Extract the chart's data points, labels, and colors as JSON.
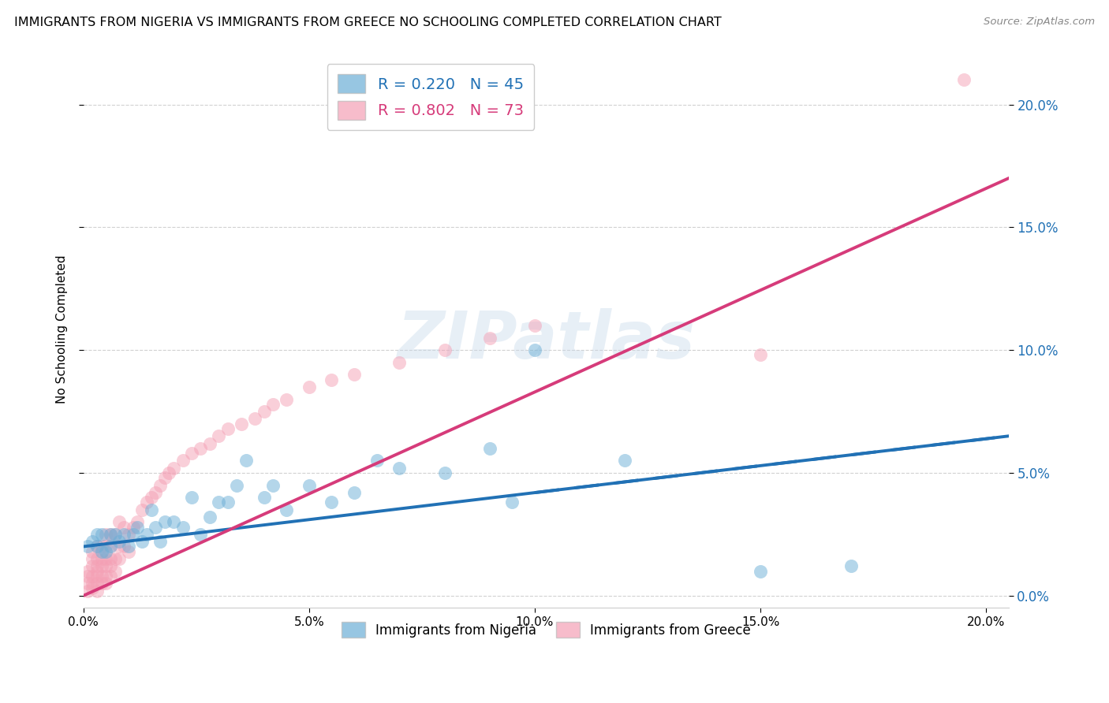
{
  "title": "IMMIGRANTS FROM NIGERIA VS IMMIGRANTS FROM GREECE NO SCHOOLING COMPLETED CORRELATION CHART",
  "source": "Source: ZipAtlas.com",
  "ylabel": "No Schooling Completed",
  "xlabel_nigeria": "Immigrants from Nigeria",
  "xlabel_greece": "Immigrants from Greece",
  "xlim": [
    0.0,
    0.205
  ],
  "ylim": [
    -0.005,
    0.222
  ],
  "nigeria_R": 0.22,
  "nigeria_N": 45,
  "greece_R": 0.802,
  "greece_N": 73,
  "nigeria_color": "#6baed6",
  "greece_color": "#f4a0b5",
  "nigeria_line_color": "#2171b5",
  "greece_line_color": "#d63b7a",
  "watermark": "ZIPatlas",
  "nigeria_scatter_x": [
    0.001,
    0.002,
    0.003,
    0.003,
    0.004,
    0.004,
    0.005,
    0.006,
    0.006,
    0.007,
    0.008,
    0.009,
    0.01,
    0.011,
    0.012,
    0.013,
    0.014,
    0.015,
    0.016,
    0.017,
    0.018,
    0.02,
    0.022,
    0.024,
    0.026,
    0.028,
    0.03,
    0.032,
    0.034,
    0.036,
    0.04,
    0.042,
    0.045,
    0.05,
    0.055,
    0.06,
    0.065,
    0.07,
    0.08,
    0.09,
    0.095,
    0.1,
    0.12,
    0.15,
    0.17
  ],
  "nigeria_scatter_y": [
    0.02,
    0.022,
    0.02,
    0.025,
    0.018,
    0.025,
    0.018,
    0.025,
    0.02,
    0.025,
    0.022,
    0.025,
    0.02,
    0.025,
    0.028,
    0.022,
    0.025,
    0.035,
    0.028,
    0.022,
    0.03,
    0.03,
    0.028,
    0.04,
    0.025,
    0.032,
    0.038,
    0.038,
    0.045,
    0.055,
    0.04,
    0.045,
    0.035,
    0.045,
    0.038,
    0.042,
    0.055,
    0.052,
    0.05,
    0.06,
    0.038,
    0.1,
    0.055,
    0.01,
    0.012
  ],
  "greece_scatter_x": [
    0.001,
    0.001,
    0.001,
    0.001,
    0.002,
    0.002,
    0.002,
    0.002,
    0.002,
    0.002,
    0.003,
    0.003,
    0.003,
    0.003,
    0.003,
    0.003,
    0.003,
    0.004,
    0.004,
    0.004,
    0.004,
    0.004,
    0.005,
    0.005,
    0.005,
    0.005,
    0.005,
    0.005,
    0.006,
    0.006,
    0.006,
    0.006,
    0.006,
    0.007,
    0.007,
    0.007,
    0.008,
    0.008,
    0.008,
    0.009,
    0.009,
    0.01,
    0.01,
    0.011,
    0.012,
    0.013,
    0.014,
    0.015,
    0.016,
    0.017,
    0.018,
    0.019,
    0.02,
    0.022,
    0.024,
    0.026,
    0.028,
    0.03,
    0.032,
    0.035,
    0.038,
    0.04,
    0.042,
    0.045,
    0.05,
    0.055,
    0.06,
    0.07,
    0.08,
    0.09,
    0.1,
    0.15,
    0.195
  ],
  "greece_scatter_y": [
    0.002,
    0.005,
    0.008,
    0.01,
    0.003,
    0.005,
    0.008,
    0.012,
    0.015,
    0.018,
    0.002,
    0.005,
    0.008,
    0.01,
    0.012,
    0.015,
    0.02,
    0.005,
    0.008,
    0.012,
    0.015,
    0.02,
    0.005,
    0.008,
    0.012,
    0.015,
    0.02,
    0.025,
    0.008,
    0.012,
    0.015,
    0.02,
    0.025,
    0.01,
    0.015,
    0.025,
    0.015,
    0.02,
    0.03,
    0.02,
    0.028,
    0.018,
    0.025,
    0.028,
    0.03,
    0.035,
    0.038,
    0.04,
    0.042,
    0.045,
    0.048,
    0.05,
    0.052,
    0.055,
    0.058,
    0.06,
    0.062,
    0.065,
    0.068,
    0.07,
    0.072,
    0.075,
    0.078,
    0.08,
    0.085,
    0.088,
    0.09,
    0.095,
    0.1,
    0.105,
    0.11,
    0.098,
    0.21
  ],
  "tick_values": [
    0.0,
    0.05,
    0.1,
    0.15,
    0.2
  ],
  "xtick_values": [
    0.0,
    0.05,
    0.1,
    0.15,
    0.2
  ],
  "nigeria_line_x": [
    0.0,
    0.205
  ],
  "nigeria_line_y": [
    0.02,
    0.065
  ],
  "greece_line_x": [
    0.0,
    0.205
  ],
  "greece_line_y": [
    0.0,
    0.17
  ]
}
